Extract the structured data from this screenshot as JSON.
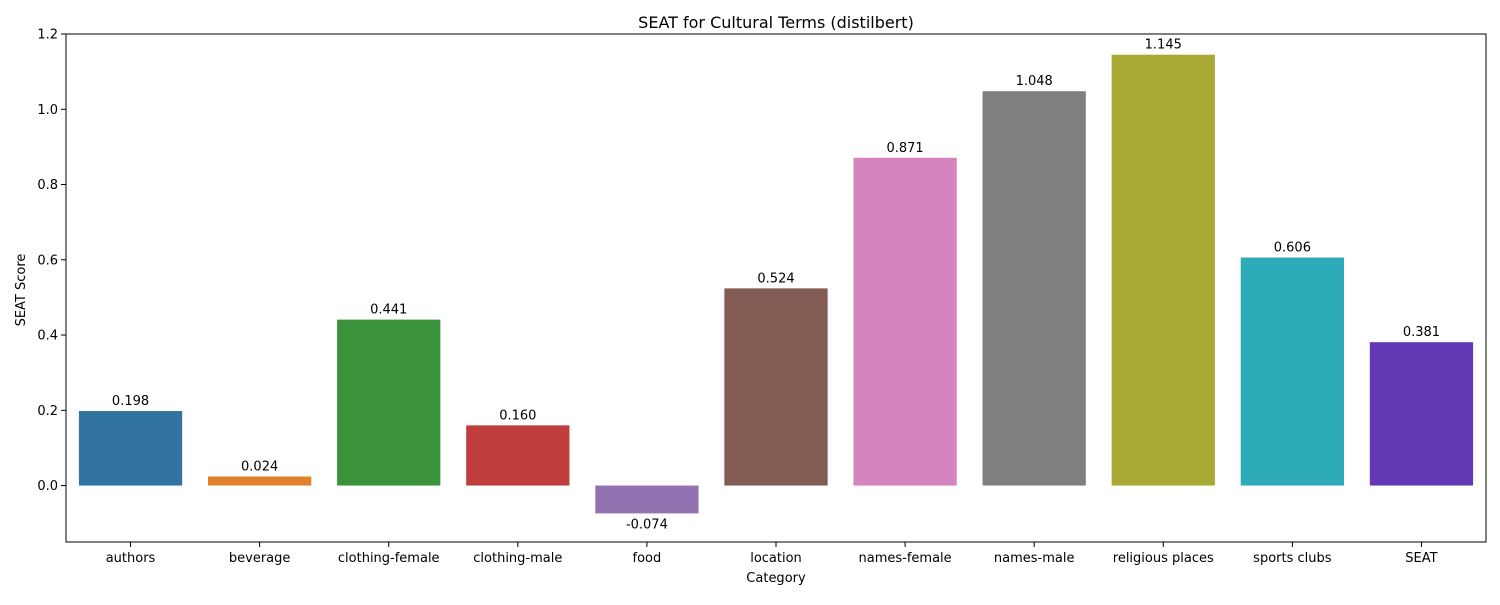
{
  "chart_data": {
    "type": "bar",
    "title": "SEAT for Cultural Terms (distilbert)",
    "xlabel": "Category",
    "ylabel": "SEAT Score",
    "ylim": [
      -0.15,
      1.2
    ],
    "yticks": [
      0.0,
      0.2,
      0.4,
      0.6,
      0.8,
      1.0,
      1.2
    ],
    "ytick_labels": [
      "0.0",
      "0.2",
      "0.4",
      "0.6",
      "0.8",
      "1.0",
      "1.2"
    ],
    "grid": false,
    "categories": [
      "authors",
      "beverage",
      "clothing-female",
      "clothing-male",
      "food",
      "location",
      "names-female",
      "names-male",
      "religious places",
      "sports clubs",
      "SEAT"
    ],
    "values": [
      0.198,
      0.024,
      0.441,
      0.16,
      -0.074,
      0.524,
      0.871,
      1.048,
      1.145,
      0.606,
      0.381
    ],
    "value_labels": [
      "0.198",
      "0.024",
      "0.441",
      "0.160",
      "-0.074",
      "0.524",
      "0.871",
      "1.048",
      "1.145",
      "0.606",
      "0.381"
    ],
    "colors": [
      "#3274a1",
      "#e1812c",
      "#3a923a",
      "#c03d3e",
      "#9372b2",
      "#845b53",
      "#d684bd",
      "#7f7f7f",
      "#a9aa35",
      "#2eabb8",
      "#6439b5"
    ]
  }
}
